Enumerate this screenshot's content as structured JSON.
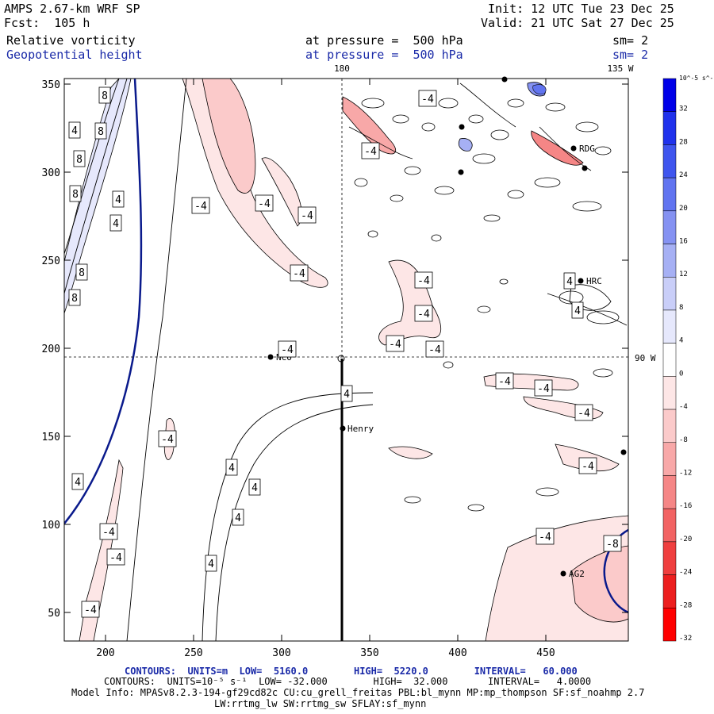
{
  "header": {
    "title": "AMPS 2.67-km WRF SP",
    "forecast": "Fcst:  105 h",
    "init": "Init: 12 UTC Tue 23 Dec 25",
    "valid": "Valid: 21 UTC Sat 27 Dec 25",
    "field1_name": "Relative vorticity",
    "field1_level": "at pressure =  500 hPa",
    "field1_sm": "sm= 2",
    "field2_name": "Geopotential height",
    "field2_level": "at pressure =  500 hPa",
    "field2_sm": "sm= 2"
  },
  "map": {
    "x_ticks": [
      "200",
      "250",
      "300",
      "350",
      "400",
      "450"
    ],
    "y_ticks": [
      "350",
      "300",
      "250",
      "200",
      "150",
      "100",
      "50"
    ],
    "longitude_labels": {
      "top_180": "180",
      "top_135w": "135 W",
      "right_90w": "90 W"
    },
    "stations": [
      "NCO",
      "Henry",
      "RDG",
      "HRC",
      "AG2"
    ],
    "contour_labels": [
      "8",
      "8",
      "8",
      "8",
      "8",
      "8",
      "4",
      "4",
      "4",
      "4",
      "4",
      "4",
      "4",
      "4",
      "4",
      "4",
      "4",
      "-4",
      "-4",
      "-4",
      "-4",
      "-4",
      "-4",
      "-4",
      "-4",
      "-4",
      "-4",
      "-4",
      "-4",
      "-4",
      "-4",
      "-4",
      "-4",
      "-4",
      "-4",
      "-4",
      "-4",
      "-8"
    ]
  },
  "colorbar": {
    "unit": "10^-5 s^-1",
    "labels": [
      "32",
      "28",
      "24",
      "20",
      "16",
      "12",
      "8",
      "4",
      "0",
      "-4",
      "-8",
      "-12",
      "-16",
      "-20",
      "-24",
      "-28",
      "-32"
    ],
    "colors": [
      "#0000e8",
      "#2032ec",
      "#3f55ee",
      "#6174f0",
      "#8592f2",
      "#a6b0f4",
      "#c9cef8",
      "#e6e8fc",
      "#ffffff",
      "#fde6e6",
      "#fbcaca",
      "#f8a8a8",
      "#f58686",
      "#f26363",
      "#ef3f3f",
      "#ec1f1f",
      "#ff0000"
    ]
  },
  "footer": {
    "line1": "CONTOURS:  UNITS=m  LOW=  5160.0        HIGH=  5220.0        INTERVAL=   60.000",
    "line2": "CONTOURS:  UNITS=10⁻⁵ s⁻¹  LOW= -32.000        HIGH=  32.000       INTERVAL=   4.0000",
    "line3": "Model Info: MPASv8.2.3-194-gf29cd82c CU:cu_grell_freitas PBL:bl_mynn MP:mp_thompson SF:sf_noahmp 2.7",
    "line4": "LW:rrtmg_lw SW:rrtmg_sw SFLAY:sf_mynn"
  }
}
